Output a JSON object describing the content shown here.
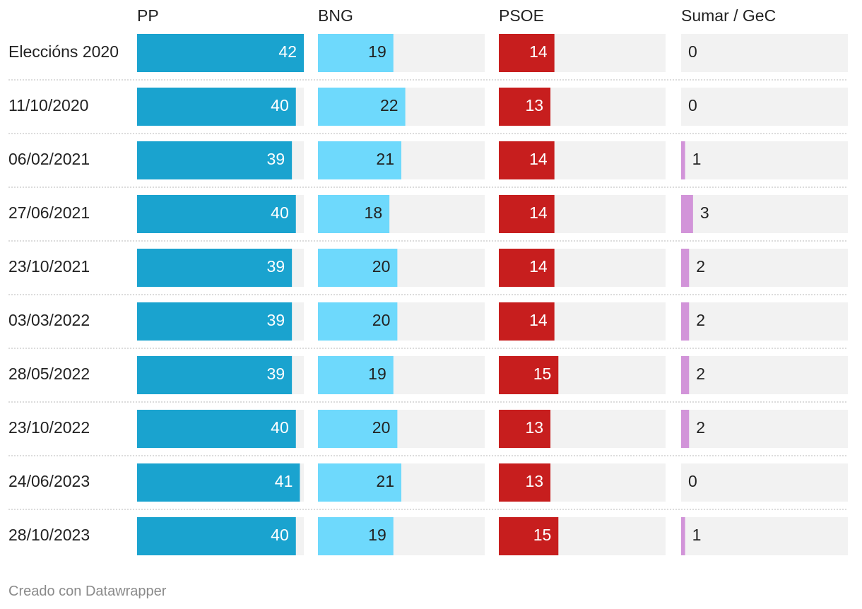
{
  "chart_data": {
    "type": "bar",
    "categories": [
      "Eleccións 2020",
      "11/10/2020",
      "06/02/2021",
      "27/06/2021",
      "23/10/2021",
      "03/03/2022",
      "28/05/2022",
      "23/10/2022",
      "24/06/2023",
      "28/10/2023"
    ],
    "series": [
      {
        "name": "PP",
        "color": "#1aa3cf",
        "label_color": "#ffffff",
        "values": [
          42,
          40,
          39,
          40,
          39,
          39,
          39,
          40,
          41,
          40
        ]
      },
      {
        "name": "BNG",
        "color": "#6ed9fc",
        "label_color": "#222222",
        "values": [
          19,
          22,
          21,
          18,
          20,
          20,
          19,
          20,
          21,
          19
        ]
      },
      {
        "name": "PSOE",
        "color": "#c71e1e",
        "label_color": "#ffffff",
        "values": [
          14,
          13,
          14,
          14,
          14,
          14,
          15,
          13,
          13,
          15
        ]
      },
      {
        "name": "Sumar / GeC",
        "color": "#d294d9",
        "label_color": "#222222",
        "values": [
          0,
          0,
          1,
          3,
          2,
          2,
          2,
          2,
          0,
          1
        ]
      }
    ],
    "max_value": 42,
    "background_bar_color": "#f2f2f2"
  },
  "footer": {
    "credit": "Creado con Datawrapper"
  }
}
